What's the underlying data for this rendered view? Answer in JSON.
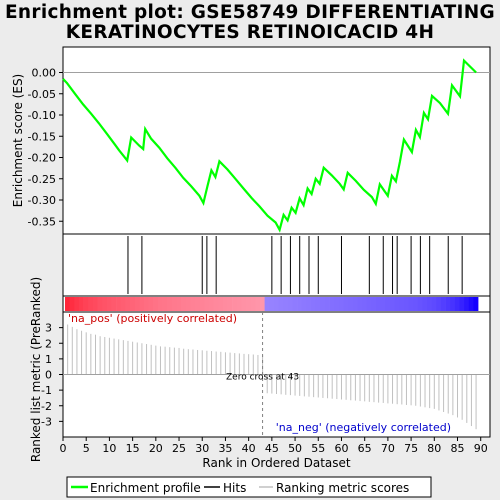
{
  "title_line1": "Enrichment plot: GSE58749 DIFFERENTIATING",
  "title_line2": "KERATINOCYTES RETINOICACID 4H",
  "chart_data": {
    "type": "line",
    "xlabel": "Rank in Ordered Dataset",
    "xlim": [
      0,
      92
    ],
    "x_ticks": [
      0,
      5,
      10,
      15,
      20,
      25,
      30,
      35,
      40,
      45,
      50,
      55,
      60,
      65,
      70,
      75,
      80,
      85,
      90
    ],
    "enrichment": {
      "ylabel": "Enrichment score (ES)",
      "ylim": [
        -0.38,
        0.06
      ],
      "y_ticks": [
        0.0,
        -0.05,
        -0.1,
        -0.15,
        -0.2,
        -0.25,
        -0.3,
        -0.35
      ],
      "y_tick_labels": [
        "0.00",
        "-0.05",
        "-0.10",
        "-0.15",
        "-0.20",
        "-0.25",
        "-0.30",
        "-0.35"
      ],
      "points": [
        [
          0,
          -0.015
        ],
        [
          1,
          -0.025
        ],
        [
          3,
          -0.05
        ],
        [
          5,
          -0.075
        ],
        [
          7,
          -0.097
        ],
        [
          9,
          -0.12
        ],
        [
          11,
          -0.145
        ],
        [
          13,
          -0.17
        ],
        [
          14,
          -0.183
        ],
        [
          15,
          -0.195
        ],
        [
          16,
          -0.207
        ],
        [
          17,
          -0.153
        ],
        [
          19,
          -0.172
        ],
        [
          20,
          -0.18
        ],
        [
          20.5,
          -0.133
        ],
        [
          22,
          -0.156
        ],
        [
          24,
          -0.177
        ],
        [
          26,
          -0.202
        ],
        [
          28,
          -0.224
        ],
        [
          30,
          -0.248
        ],
        [
          32,
          -0.268
        ],
        [
          34,
          -0.29
        ],
        [
          35,
          -0.307
        ],
        [
          36,
          -0.268
        ],
        [
          37,
          -0.23
        ],
        [
          38,
          -0.246
        ],
        [
          39,
          -0.209
        ],
        [
          41,
          -0.228
        ],
        [
          43,
          -0.25
        ],
        [
          45,
          -0.273
        ],
        [
          47,
          -0.295
        ],
        [
          49,
          -0.315
        ],
        [
          51,
          -0.337
        ],
        [
          53,
          -0.353
        ],
        [
          54,
          -0.37
        ],
        [
          55,
          -0.335
        ],
        [
          56,
          -0.348
        ],
        [
          57,
          -0.318
        ],
        [
          58,
          -0.33
        ],
        [
          59,
          -0.296
        ],
        [
          60,
          -0.312
        ],
        [
          61,
          -0.273
        ],
        [
          62,
          -0.286
        ],
        [
          63,
          -0.25
        ],
        [
          64,
          -0.262
        ],
        [
          65,
          -0.224
        ],
        [
          67,
          -0.242
        ],
        [
          69,
          -0.262
        ],
        [
          70,
          -0.275
        ],
        [
          71,
          -0.236
        ],
        [
          73,
          -0.255
        ],
        [
          75,
          -0.276
        ],
        [
          77,
          -0.293
        ],
        [
          78,
          -0.309
        ],
        [
          79,
          -0.263
        ],
        [
          81,
          -0.29
        ],
        [
          82,
          -0.243
        ],
        [
          83,
          -0.256
        ],
        [
          84,
          -0.21
        ],
        [
          85,
          -0.158
        ],
        [
          87,
          -0.187
        ],
        [
          88,
          -0.135
        ],
        [
          89,
          -0.152
        ],
        [
          90,
          -0.095
        ],
        [
          91,
          -0.11
        ],
        [
          92,
          -0.055
        ],
        [
          94,
          -0.072
        ],
        [
          96,
          -0.097
        ],
        [
          97,
          -0.03
        ],
        [
          99,
          -0.056
        ],
        [
          100,
          0.028
        ],
        [
          103,
          0.0
        ]
      ],
      "x_scale_note": "points use an internal index; rescaled to ranks 0-89"
    },
    "hits": [
      14,
      17,
      30,
      31,
      33,
      45,
      47,
      49,
      51,
      53,
      55,
      60,
      66,
      69,
      71,
      72,
      75,
      77,
      79,
      83,
      86
    ],
    "ranked_metric": {
      "ylabel": "Ranked list metric (PreRanked)",
      "ylim": [
        -4,
        4
      ],
      "y_ticks": [
        3,
        2,
        1,
        0,
        -1,
        -2,
        -3
      ],
      "zero_cross_label": "Zero cross at 43",
      "zero_cross": 43,
      "pos_label": "'na_pos' (positively correlated)",
      "neg_label": "'na_neg' (negatively correlated)",
      "values": [
        3.2,
        3.05,
        2.9,
        2.8,
        2.7,
        2.6,
        2.55,
        2.45,
        2.4,
        2.35,
        2.3,
        2.25,
        2.2,
        2.15,
        2.1,
        2.05,
        2.0,
        1.95,
        1.9,
        1.85,
        1.8,
        1.78,
        1.75,
        1.72,
        1.7,
        1.65,
        1.62,
        1.6,
        1.57,
        1.55,
        1.52,
        1.5,
        1.47,
        1.45,
        1.42,
        1.4,
        1.37,
        1.35,
        1.32,
        1.3,
        1.28,
        1.25,
        1.2,
        -1.2,
        -1.22,
        -1.25,
        -1.27,
        -1.3,
        -1.32,
        -1.35,
        -1.37,
        -1.4,
        -1.42,
        -1.45,
        -1.47,
        -1.5,
        -1.52,
        -1.55,
        -1.57,
        -1.6,
        -1.62,
        -1.65,
        -1.67,
        -1.7,
        -1.72,
        -1.75,
        -1.77,
        -1.8,
        -1.82,
        -1.85,
        -1.87,
        -1.9,
        -1.92,
        -1.95,
        -1.97,
        -2.0,
        -2.05,
        -2.1,
        -2.15,
        -2.2,
        -2.3,
        -2.4,
        -2.5,
        -2.6,
        -2.75,
        -2.9,
        -3.1,
        -3.3,
        -3.5
      ]
    },
    "colors": {
      "enrichment_line": "#00ff00",
      "hit_line": "#000000",
      "metric_line": "#c0c0c0",
      "pos_text": "#cc0000",
      "neg_text": "#0000cc",
      "zero_line": "#a0a0a0",
      "zero_cross_line": "#808080"
    },
    "legend": {
      "entries": [
        "Enrichment profile",
        "Hits",
        "Ranking metric scores"
      ],
      "placement": "bottom"
    }
  }
}
